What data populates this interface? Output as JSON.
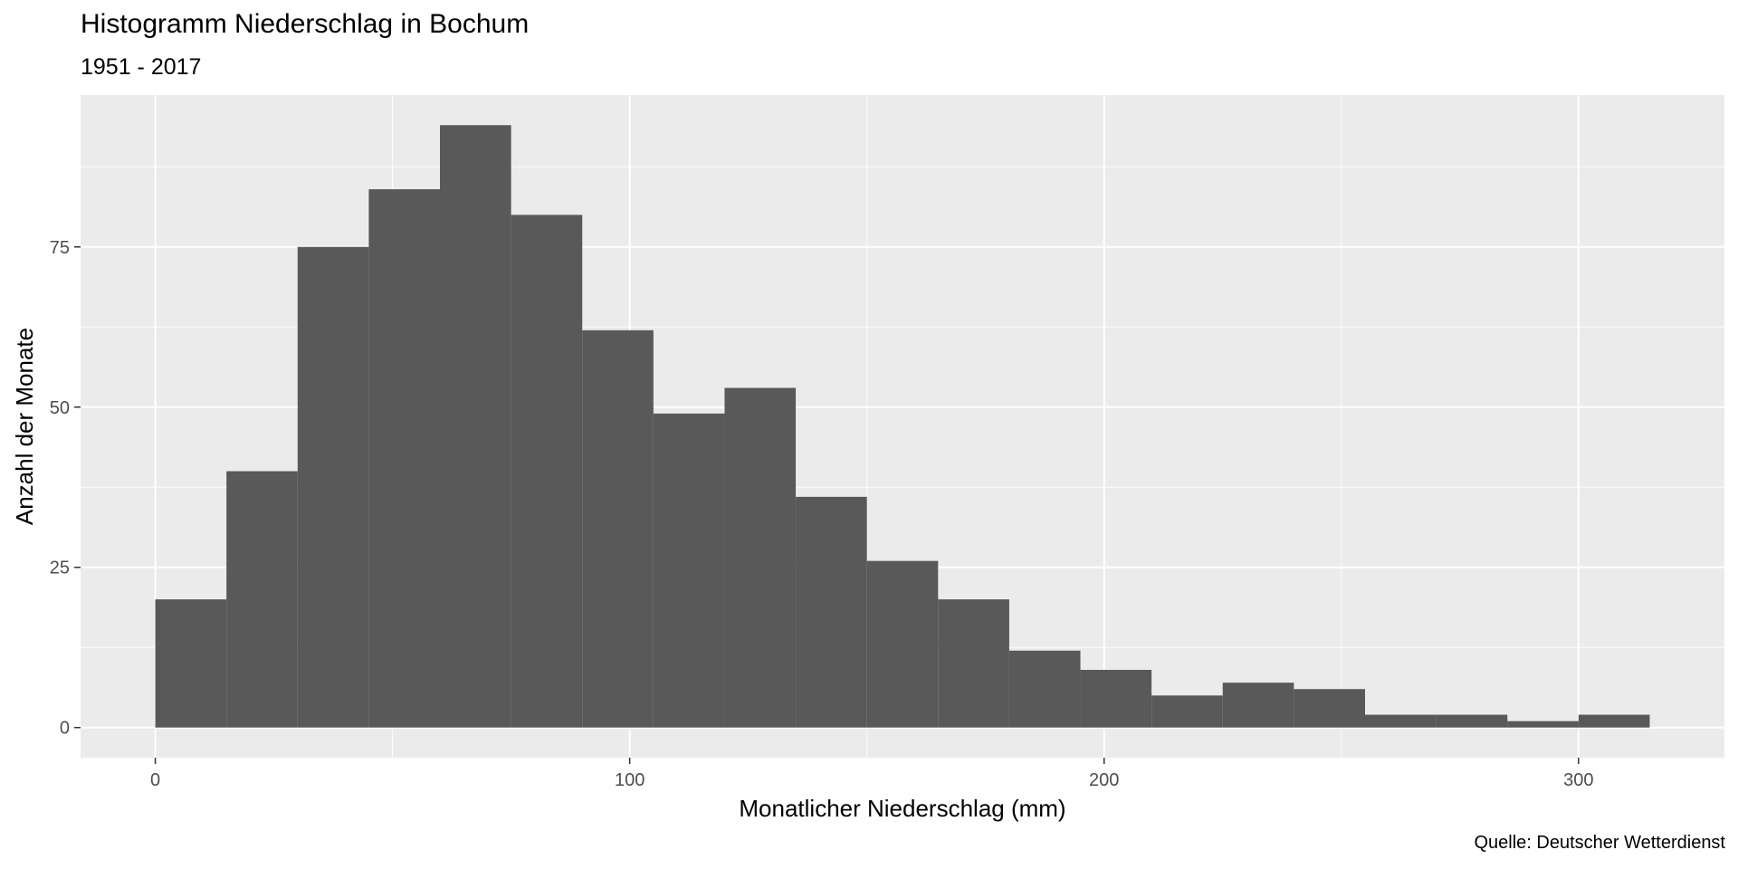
{
  "chart_data": {
    "type": "bar",
    "title": "Histogramm Niederschlag in Bochum",
    "subtitle": "1951 - 2017",
    "caption": "Quelle: Deutscher Wetterdienst",
    "xlabel": "Monatlicher Niederschlag (mm)",
    "ylabel": "Anzahl der Monate",
    "binwidth": 15,
    "bins": [
      {
        "x0": 0,
        "x1": 15,
        "count": 20
      },
      {
        "x0": 15,
        "x1": 30,
        "count": 40
      },
      {
        "x0": 30,
        "x1": 45,
        "count": 75
      },
      {
        "x0": 45,
        "x1": 60,
        "count": 84
      },
      {
        "x0": 60,
        "x1": 75,
        "count": 94
      },
      {
        "x0": 75,
        "x1": 90,
        "count": 80
      },
      {
        "x0": 90,
        "x1": 105,
        "count": 62
      },
      {
        "x0": 105,
        "x1": 120,
        "count": 49
      },
      {
        "x0": 120,
        "x1": 135,
        "count": 53
      },
      {
        "x0": 135,
        "x1": 150,
        "count": 36
      },
      {
        "x0": 150,
        "x1": 165,
        "count": 26
      },
      {
        "x0": 165,
        "x1": 180,
        "count": 20
      },
      {
        "x0": 180,
        "x1": 195,
        "count": 12
      },
      {
        "x0": 195,
        "x1": 210,
        "count": 9
      },
      {
        "x0": 210,
        "x1": 225,
        "count": 5
      },
      {
        "x0": 225,
        "x1": 240,
        "count": 7
      },
      {
        "x0": 240,
        "x1": 255,
        "count": 6
      },
      {
        "x0": 255,
        "x1": 270,
        "count": 2
      },
      {
        "x0": 270,
        "x1": 285,
        "count": 2
      },
      {
        "x0": 285,
        "x1": 300,
        "count": 1
      },
      {
        "x0": 300,
        "x1": 315,
        "count": 2
      }
    ],
    "xlim": [
      -15.75,
      330.75
    ],
    "ylim": [
      -4.7,
      98.7
    ],
    "xticks": [
      0,
      100,
      200,
      300
    ],
    "yticks": [
      0,
      25,
      50,
      75
    ],
    "grid": true,
    "colors": {
      "bar": "#595959",
      "panel": "#ebebeb",
      "grid_major": "#ffffff",
      "tick_text": "#4d4d4d"
    }
  }
}
